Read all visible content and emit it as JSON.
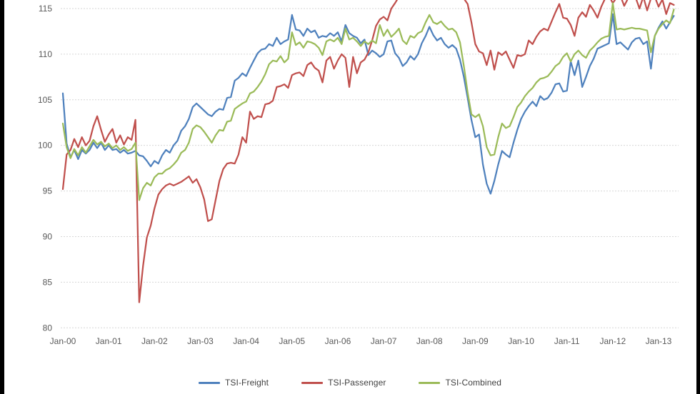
{
  "figure": {
    "background_color": "#ffffff",
    "edge_bar_color": "#000000",
    "gridline_color": "#d6d6d6",
    "axis_label_color": "#595959",
    "legend_label_color": "#3f3f3f"
  },
  "chart_data": {
    "type": "line",
    "title": "",
    "xlabel": "",
    "ylabel": "",
    "frequency": "monthly",
    "x_start_label": "Jan-00",
    "x_end_label": "Jan-13",
    "grid": "horizontal-dotted",
    "legend_position": "bottom-center",
    "y_axis": {
      "min": 80,
      "max": 115,
      "step": 5,
      "ticks": [
        115,
        110,
        105,
        100,
        95,
        90,
        85,
        80
      ]
    },
    "x_axis": {
      "tick_labels": [
        "Jan-00",
        "Jan-01",
        "Jan-02",
        "Jan-03",
        "Jan-04",
        "Jan-05",
        "Jan-06",
        "Jan-07",
        "Jan-08",
        "Jan-09",
        "Jan-10",
        "Jan-11",
        "Jan-12",
        "Jan-13"
      ]
    },
    "series": [
      {
        "name": "TSI-Freight",
        "color": "#4F81BD",
        "values": [
          105.7,
          100.2,
          98.7,
          99.5,
          98.5,
          99.5,
          99.1,
          99.5,
          100.3,
          99.7,
          100.3,
          99.5,
          100.0,
          99.5,
          99.6,
          99.2,
          99.5,
          99.1,
          99.2,
          99.4,
          98.9,
          98.8,
          98.3,
          97.7,
          98.3,
          98.0,
          98.9,
          99.5,
          99.2,
          100.0,
          100.5,
          101.6,
          102.1,
          102.9,
          104.2,
          104.6,
          104.2,
          103.8,
          103.4,
          103.2,
          103.7,
          104.0,
          103.9,
          105.2,
          105.3,
          107.1,
          107.4,
          107.9,
          107.6,
          108.5,
          109.3,
          110.1,
          110.5,
          110.6,
          111.1,
          110.9,
          111.8,
          111.1,
          111.4,
          111.6,
          114.3,
          112.7,
          112.6,
          112.0,
          112.8,
          112.4,
          112.6,
          111.8,
          112.0,
          111.9,
          112.3,
          112.0,
          112.4,
          111.4,
          113.2,
          112.3,
          112.0,
          111.8,
          111.2,
          111.6,
          109.9,
          110.4,
          110.1,
          109.7,
          110.0,
          111.4,
          111.5,
          110.1,
          109.6,
          108.7,
          109.1,
          109.8,
          109.4,
          110.0,
          111.2,
          112.0,
          113.0,
          112.1,
          111.5,
          111.8,
          111.1,
          110.7,
          111.0,
          110.6,
          109.4,
          107.5,
          105.2,
          102.8,
          100.9,
          101.2,
          97.9,
          95.8,
          94.7,
          96.1,
          97.9,
          99.4,
          99.0,
          98.7,
          100.3,
          101.7,
          102.9,
          103.7,
          104.3,
          104.8,
          104.3,
          105.4,
          105.0,
          105.2,
          105.8,
          106.7,
          106.8,
          105.9,
          106.0,
          109.2,
          107.7,
          109.3,
          106.4,
          107.5,
          108.7,
          109.5,
          110.6,
          110.8,
          111.0,
          111.2,
          114.4,
          111.1,
          111.3,
          110.9,
          110.5,
          111.3,
          111.7,
          111.8,
          111.1,
          111.4,
          108.4,
          112.0,
          112.9,
          113.6,
          112.8,
          113.5,
          114.2
        ]
      },
      {
        "name": "TSI-Passenger",
        "color": "#C0504D",
        "values": [
          95.2,
          99.0,
          99.5,
          100.7,
          99.8,
          100.9,
          100.0,
          100.5,
          102.1,
          103.2,
          101.7,
          100.4,
          101.2,
          101.8,
          100.3,
          101.1,
          100.1,
          100.9,
          100.6,
          102.8,
          82.8,
          86.8,
          89.9,
          91.2,
          93.1,
          94.6,
          95.2,
          95.6,
          95.8,
          95.6,
          95.8,
          96.0,
          96.3,
          96.6,
          95.9,
          96.3,
          95.4,
          94.1,
          91.7,
          91.9,
          94.0,
          96.1,
          97.4,
          98.0,
          98.1,
          98.0,
          99.0,
          100.9,
          100.3,
          103.7,
          102.9,
          103.2,
          103.1,
          104.5,
          104.6,
          104.9,
          106.4,
          106.5,
          106.7,
          106.3,
          107.7,
          107.9,
          108.0,
          107.6,
          108.8,
          109.1,
          108.5,
          108.2,
          106.9,
          109.3,
          109.7,
          108.4,
          109.3,
          110.0,
          109.6,
          106.4,
          109.7,
          107.9,
          109.1,
          109.4,
          110.2,
          111.5,
          113.1,
          113.8,
          114.1,
          113.7,
          115.0,
          115.6,
          116.3,
          116.8,
          117.0,
          116.6,
          116.9,
          117.2,
          117.0,
          117.3,
          117.0,
          117.4,
          117.1,
          117.5,
          117.2,
          116.8,
          116.5,
          116.9,
          116.4,
          116.1,
          115.5,
          113.5,
          111.1,
          110.3,
          110.1,
          108.8,
          110.4,
          108.3,
          110.2,
          109.9,
          110.3,
          109.4,
          108.5,
          109.9,
          109.8,
          110.0,
          111.5,
          111.1,
          111.9,
          112.5,
          112.8,
          112.6,
          113.6,
          114.6,
          115.5,
          114.0,
          113.9,
          113.2,
          112.0,
          114.0,
          114.6,
          114.1,
          115.4,
          114.8,
          114.0,
          115.2,
          116.1,
          116.4,
          115.6,
          116.2,
          116.4,
          115.3,
          116.1,
          116.4,
          116.2,
          115.0,
          116.3,
          114.8,
          116.1,
          116.3,
          115.2,
          116.0,
          114.4,
          115.6,
          115.4
        ]
      },
      {
        "name": "TSI-Combined",
        "color": "#9BBB59",
        "values": [
          102.4,
          99.8,
          98.6,
          99.6,
          98.9,
          99.8,
          99.2,
          99.9,
          100.6,
          100.1,
          100.4,
          99.9,
          100.2,
          99.7,
          100.0,
          99.5,
          99.8,
          99.4,
          99.6,
          100.3,
          94.0,
          95.3,
          95.9,
          95.6,
          96.5,
          96.9,
          96.9,
          97.3,
          97.5,
          97.9,
          98.4,
          99.2,
          99.5,
          100.3,
          101.8,
          102.2,
          102.0,
          101.5,
          100.9,
          100.3,
          101.1,
          101.7,
          101.6,
          102.6,
          102.7,
          104.0,
          104.3,
          104.6,
          104.8,
          105.7,
          105.9,
          106.4,
          107.0,
          107.8,
          108.9,
          109.3,
          109.2,
          109.8,
          109.1,
          109.5,
          112.4,
          111.0,
          111.3,
          110.7,
          111.4,
          111.3,
          111.1,
          110.7,
          109.9,
          111.4,
          111.6,
          111.4,
          111.8,
          111.1,
          112.8,
          111.6,
          111.8,
          111.4,
          110.9,
          111.4,
          111.1,
          111.5,
          111.2,
          113.2,
          112.0,
          112.7,
          111.9,
          112.3,
          112.8,
          111.5,
          111.1,
          112.0,
          111.8,
          112.3,
          112.5,
          113.5,
          114.3,
          113.5,
          113.3,
          113.6,
          113.1,
          112.7,
          112.8,
          112.4,
          111.3,
          108.7,
          105.8,
          103.4,
          103.1,
          103.4,
          102.1,
          99.8,
          98.9,
          99.0,
          100.9,
          102.4,
          101.9,
          102.1,
          103.1,
          104.2,
          104.7,
          105.4,
          105.9,
          106.3,
          106.9,
          107.3,
          107.4,
          107.6,
          108.1,
          108.7,
          109.0,
          109.7,
          110.1,
          109.2,
          110.0,
          110.4,
          109.9,
          109.6,
          110.4,
          110.8,
          111.3,
          111.7,
          111.9,
          112.0,
          115.6,
          112.7,
          112.8,
          112.7,
          112.8,
          112.9,
          112.8,
          112.8,
          112.7,
          112.6,
          110.2,
          112.0,
          112.8,
          113.3,
          113.7,
          113.4,
          114.9
        ]
      }
    ]
  }
}
